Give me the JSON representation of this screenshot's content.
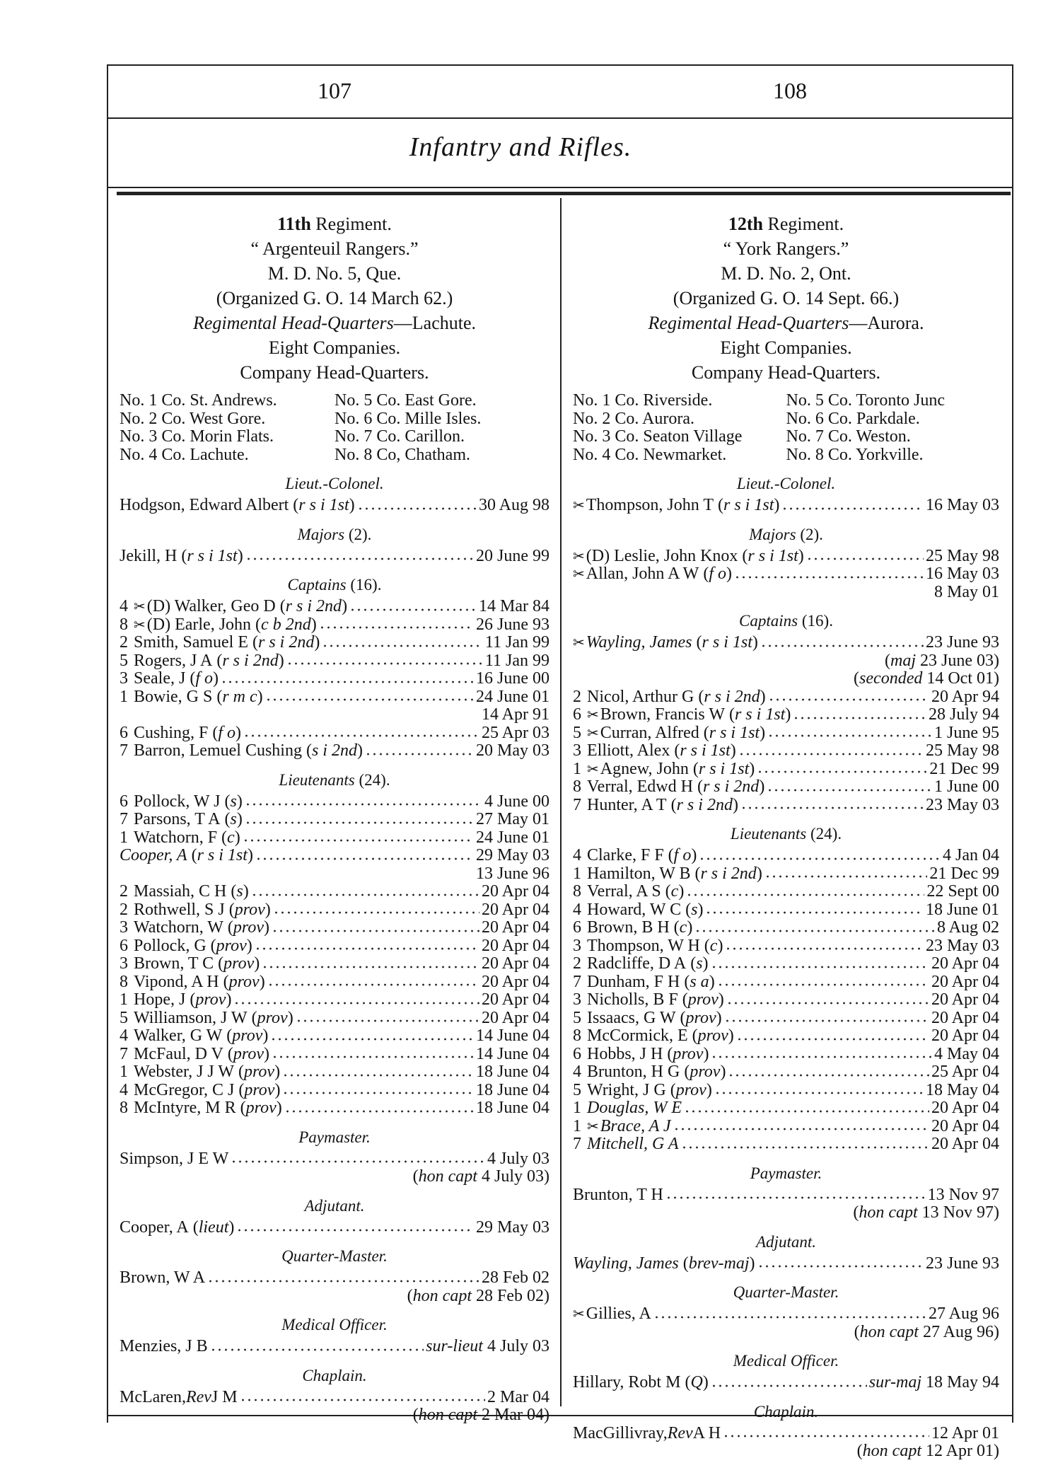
{
  "header": {
    "page_left": "107",
    "page_right": "108",
    "title": "Infantry and Rifles."
  },
  "left": {
    "title_num": "11th",
    "title_rest": " Regiment.",
    "name": "“ Argenteuil Rangers.”",
    "district": "M. D. No. 5, Que.",
    "organized": "(Organized G. O. 14 March 62.)",
    "hq_label": "Regimental Head-Quarters",
    "hq_place": "—Lachute.",
    "companies_count": "Eight Companies.",
    "company_hq_heading": "Company Head-Quarters.",
    "companies": [
      "No. 1 Co. St. Andrews.",
      "No. 5 Co. East Gore.",
      "No. 2 Co. West Gore.",
      "No. 6 Co. Mille Isles.",
      "No. 3 Co. Morin Flats.",
      "No. 7 Co. Carillon.",
      "No. 4 Co. Lachute.",
      "No. 8 Co, Chatham."
    ],
    "sections": [
      {
        "heading": "Lieut.-Colonel.",
        "rows": [
          {
            "name": "Hodgson, Edward Albert",
            "qual": "r s i 1st",
            "date": "30 Aug 98"
          }
        ]
      },
      {
        "heading": "Majors",
        "count": " (2).",
        "rows": [
          {
            "name": "Jekill, H",
            "qual": "r s i 1st",
            "date": "20 June 99"
          }
        ]
      },
      {
        "heading": "Captains",
        "count": " (16).",
        "rows": [
          {
            "co": "4",
            "swords": true,
            "name": "(D) Walker, Geo D",
            "qual": "r s i 2nd",
            "date": "14 Mar 84"
          },
          {
            "co": "8",
            "swords": true,
            "name": "(D) Earle, John",
            "qual": "c b 2nd",
            "date": "26 June 93"
          },
          {
            "co": "2",
            "name": "Smith, Samuel E",
            "qual": "r s i 2nd",
            "date": "11 Jan 99"
          },
          {
            "co": "5",
            "name": "Rogers, J A",
            "qual": "r s i 2nd",
            "date": "11 Jan 99"
          },
          {
            "co": "3",
            "name": "Seale, J",
            "qual": "f o",
            "date": "16 June 00"
          },
          {
            "co": "1",
            "name": "Bowie, G S",
            "qual": "r m c",
            "date": "24 June 01",
            "notes": [
              {
                "value": "14 Apr 91"
              }
            ]
          },
          {
            "co": "6",
            "name": "Cushing, F",
            "qual": "f o",
            "date": "25 Apr 03"
          },
          {
            "co": "7",
            "name": "Barron, Lemuel Cushing",
            "qual": "s i 2nd",
            "date": "20 May 03"
          }
        ]
      },
      {
        "heading": "Lieutenants",
        "count": " (24).",
        "rows": [
          {
            "co": "6",
            "name": "Pollock, W J",
            "qual": "s",
            "date": "4 June 00"
          },
          {
            "co": "7",
            "name": "Parsons, T A",
            "qual": "s",
            "date": "27 May 01"
          },
          {
            "co": "1",
            "name": "Watchorn, F",
            "qual": "c",
            "date": "24 June 01"
          },
          {
            "name": "Cooper, A",
            "italic_name": true,
            "qual": "r s i 1st",
            "date": "29 May 03",
            "notes": [
              {
                "value": "13 June 96"
              }
            ]
          },
          {
            "co": "2",
            "name": "Massiah, C H",
            "qual": "s",
            "date": "20 Apr 04"
          },
          {
            "co": "2",
            "name": "Rothwell, S J",
            "qual": "prov",
            "date": "20 Apr 04"
          },
          {
            "co": "3",
            "name": "Watchorn, W",
            "qual": "prov",
            "date": "20 Apr 04"
          },
          {
            "co": "6",
            "name": "Pollock, G",
            "qual": "prov",
            "date": "20 Apr 04"
          },
          {
            "co": "3",
            "name": "Brown, T C",
            "qual": "prov",
            "date": "20 Apr 04"
          },
          {
            "co": "8",
            "name": "Vipond, A H",
            "qual": "prov",
            "date": "20 Apr 04"
          },
          {
            "co": "1",
            "name": "Hope, J",
            "qual": "prov",
            "date": "20 Apr 04"
          },
          {
            "co": "5",
            "name": "Williamson, J W",
            "qual": "prov",
            "date": "20 Apr 04"
          },
          {
            "co": "4",
            "name": "Walker, G W",
            "qual": "prov",
            "date": "14 June 04"
          },
          {
            "co": "7",
            "name": "McFaul, D V",
            "qual": "prov",
            "date": "14 June 04"
          },
          {
            "co": "1",
            "name": "Webster, J J W",
            "qual": "prov",
            "date": "18 June 04"
          },
          {
            "co": "4",
            "name": "McGregor, C J",
            "qual": "prov",
            "date": "18 June 04"
          },
          {
            "co": "8",
            "name": "McIntyre, M R",
            "qual": "prov",
            "date": "18 June 04"
          }
        ]
      },
      {
        "heading": "Paymaster.",
        "rows": [
          {
            "name": "Simpson, J E W",
            "date": "4 July 03",
            "notes": [
              {
                "label": "hon capt",
                "value": "4 July 03"
              }
            ]
          }
        ]
      },
      {
        "heading": "Adjutant.",
        "rows": [
          {
            "name": "Cooper, A",
            "qual": "lieut",
            "date": "29 May 03"
          }
        ]
      },
      {
        "heading": "Quarter-Master.",
        "rows": [
          {
            "name": "Brown, W A",
            "date": "28 Feb 02",
            "notes": [
              {
                "label": "hon capt",
                "value": "28 Feb 02"
              }
            ]
          }
        ]
      },
      {
        "heading": "Medical Officer.",
        "rows": [
          {
            "name": "Menzies, J B",
            "date_prefix": "sur-lieut",
            "date": "4 July 03"
          }
        ]
      },
      {
        "heading": "Chaplain.",
        "rows": [
          {
            "name": "McLaren,",
            "title": "Rev",
            "given": "J M",
            "date": "2 Mar 04",
            "notes": [
              {
                "label": "hon capt",
                "value": "2 Mar 04"
              }
            ]
          }
        ]
      }
    ]
  },
  "right": {
    "title_num": "12th",
    "title_rest": " Regiment.",
    "name": "“ York Rangers.”",
    "district": "M. D. No. 2, Ont.",
    "organized": "(Organized G. O. 14 Sept. 66.)",
    "hq_label": "Regimental Head-Quarters",
    "hq_place": "—Aurora.",
    "companies_count": "Eight Companies.",
    "company_hq_heading": "Company Head-Quarters.",
    "companies": [
      "No. 1 Co. Riverside.",
      "No. 5 Co. Toronto Junc",
      "No. 2 Co. Aurora.",
      "No. 6 Co. Parkdale.",
      "No. 3 Co. Seaton Village",
      "No. 7 Co. Weston.",
      "No. 4 Co. Newmarket.",
      "No. 8 Co. Yorkville."
    ],
    "sections": [
      {
        "heading": "Lieut.-Colonel.",
        "rows": [
          {
            "swords": true,
            "name": "Thompson, John T",
            "qual": "r s i 1st",
            "date": "16 May 03"
          }
        ]
      },
      {
        "heading": "Majors",
        "count": " (2).",
        "rows": [
          {
            "swords": true,
            "name": "(D) Leslie, John Knox",
            "qual": "r s i 1st",
            "date": "25 May 98"
          },
          {
            "swords": true,
            "name": "Allan, John A W",
            "qual": "f o",
            "date": "16 May 03",
            "notes": [
              {
                "value": "8 May 01"
              }
            ]
          }
        ]
      },
      {
        "heading": "Captains",
        "count": " (16).",
        "rows": [
          {
            "swords": true,
            "name": "Wayling, James",
            "italic_name": true,
            "qual": "r s i 1st",
            "date": "23 June 93",
            "notes": [
              {
                "label": "maj",
                "value": "23 June 03"
              },
              {
                "label": "seconded",
                "value": "14 Oct 01"
              }
            ]
          },
          {
            "co": "2",
            "name": "Nicol, Arthur G",
            "qual": "r s i 2nd",
            "date": "20 Apr 94"
          },
          {
            "co": "6",
            "swords": true,
            "name": "Brown, Francis W",
            "qual": "r s i 1st",
            "date": "28 July 94"
          },
          {
            "co": "5",
            "swords": true,
            "name": "Curran, Alfred",
            "qual": "r s i 1st",
            "date": "1 June 95"
          },
          {
            "co": "3",
            "name": "Elliott, Alex",
            "qual": "r s i 1st",
            "date": "25 May 98"
          },
          {
            "co": "1",
            "swords": true,
            "name": "Agnew, John",
            "qual": "r s i 1st",
            "date": "21 Dec 99"
          },
          {
            "co": "8",
            "name": "Verral, Edwd H",
            "qual": "r s i 2nd",
            "date": "1 June 00"
          },
          {
            "co": "7",
            "name": "Hunter, A T",
            "qual": "r s i 2nd",
            "date": "23 May 03"
          }
        ]
      },
      {
        "heading": "Lieutenants",
        "count": " (24).",
        "rows": [
          {
            "co": "4",
            "name": "Clarke, F F",
            "qual": "f o",
            "date": "4 Jan 04"
          },
          {
            "co": "1",
            "name": "Hamilton, W B",
            "qual": "r s i 2nd",
            "date": "21 Dec 99"
          },
          {
            "co": "8",
            "name": "Verral, A S",
            "qual": "c",
            "date": "22 Sept 00"
          },
          {
            "co": "4",
            "name": "Howard, W C",
            "qual": "s",
            "date": "18 June 01"
          },
          {
            "co": "6",
            "name": "Brown, B H",
            "qual": "c",
            "date": "8 Aug 02"
          },
          {
            "co": "3",
            "name": "Thompson, W H",
            "qual": "c",
            "date": "23 May 03"
          },
          {
            "co": "2",
            "name": "Radcliffe, D A",
            "qual": "s",
            "date": "20 Apr 04"
          },
          {
            "co": "7",
            "name": "Dunham, F H",
            "qual": "s a",
            "date": "20 Apr 04"
          },
          {
            "co": "3",
            "name": "Nicholls, B F",
            "qual": "prov",
            "date": "20 Apr 04"
          },
          {
            "co": "5",
            "name": "Issaacs, G W",
            "qual": "prov",
            "date": "20 Apr 04"
          },
          {
            "co": "8",
            "name": "McCormick, E",
            "qual": "prov",
            "date": "20 Apr 04"
          },
          {
            "co": "6",
            "name": "Hobbs, J H",
            "qual": "prov",
            "date": "4 May 04"
          },
          {
            "co": "4",
            "name": "Brunton, H G",
            "qual": "prov",
            "date": "25 Apr 04"
          },
          {
            "co": "5",
            "name": "Wright, J G",
            "qual": "prov",
            "date": "18 May 04"
          },
          {
            "co": "1",
            "name": "Douglas, W E",
            "italic_name": true,
            "date": "20 Apr 04"
          },
          {
            "co": "1",
            "swords": true,
            "name": "Brace, A J",
            "italic_name": true,
            "date": "20 Apr 04"
          },
          {
            "co": "7",
            "name": "Mitchell, G A",
            "italic_name": true,
            "date": "20 Apr 04"
          }
        ]
      },
      {
        "heading": "Paymaster.",
        "rows": [
          {
            "name": "Brunton, T H",
            "date": "13 Nov 97",
            "notes": [
              {
                "label": "hon capt",
                "value": "13 Nov 97"
              }
            ]
          }
        ]
      },
      {
        "heading": "Adjutant.",
        "rows": [
          {
            "name": "Wayling, James",
            "italic_name": true,
            "qual": "brev-maj",
            "date": "23 June 93"
          }
        ]
      },
      {
        "heading": "Quarter-Master.",
        "rows": [
          {
            "swords": true,
            "name": "Gillies, A",
            "date": "27 Aug 96",
            "notes": [
              {
                "label": "hon capt",
                "value": "27 Aug 96"
              }
            ]
          }
        ]
      },
      {
        "heading": "Medical Officer.",
        "rows": [
          {
            "name": "Hillary, Robt M",
            "qual": "Q",
            "date_prefix": "sur-maj",
            "date": "18 May 94"
          }
        ]
      },
      {
        "heading": "Chaplain.",
        "rows": [
          {
            "name": "MacGillivray,",
            "title": "Rev",
            "given": "A H",
            "date": "12 Apr 01",
            "notes": [
              {
                "label": "hon capt",
                "value": "12 Apr 01"
              }
            ]
          }
        ]
      }
    ]
  },
  "icons": {
    "swords": "crossed-swords-icon"
  }
}
